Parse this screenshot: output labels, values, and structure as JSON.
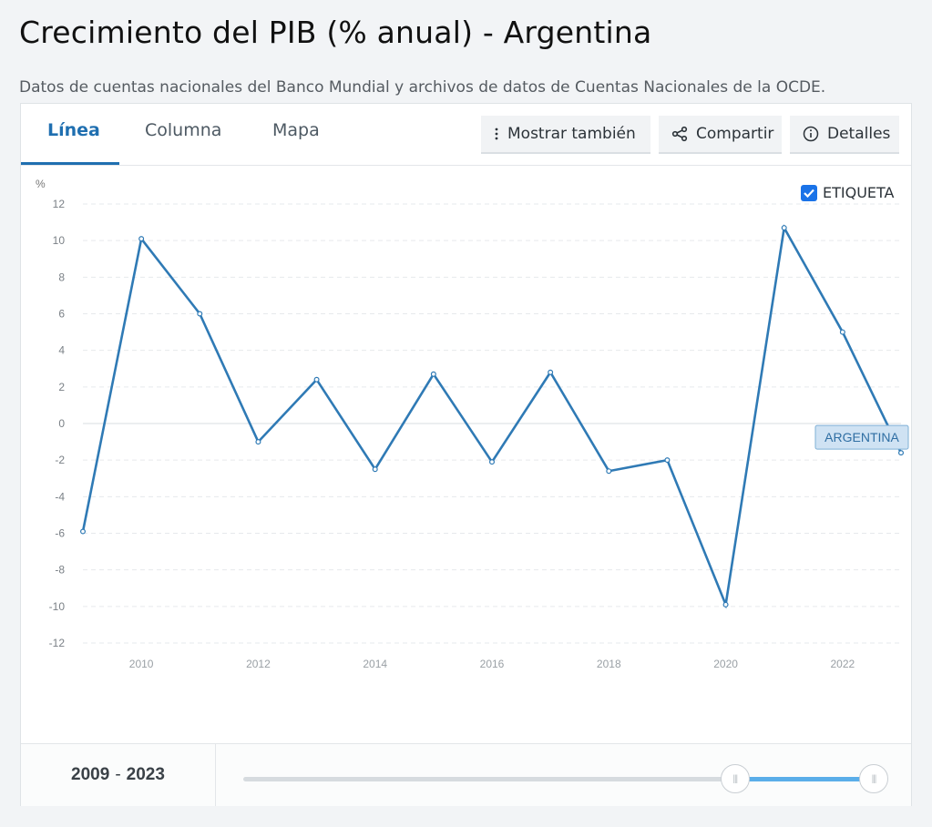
{
  "page": {
    "title": "Crecimiento del PIB (% anual) - Argentina",
    "subtitle": "Datos de cuentas nacionales del Banco Mundial y archivos de datos de Cuentas Nacionales de la OCDE."
  },
  "tabs": [
    {
      "label": "Línea",
      "active": true
    },
    {
      "label": "Columna",
      "active": false
    },
    {
      "label": "Mapa",
      "active": false
    }
  ],
  "toolbar": {
    "more_label": "Mostrar también",
    "share_label": "Compartir",
    "details_label": "Detalles",
    "more_icon": "more-vertical-icon",
    "share_icon": "share-icon",
    "details_icon": "info-icon"
  },
  "legend": {
    "checkbox_label": "ETIQUETA",
    "checked": true
  },
  "range": {
    "start": "2009",
    "separator": "-",
    "end": "2023",
    "slider_start_fraction": 0.78,
    "slider_end_fraction": 1.0
  },
  "colors": {
    "line": "#2f7ab5",
    "accent": "#1f6fb0",
    "checkbox": "#1a73e8",
    "slider_fill": "#5aaee9"
  },
  "chart_data": {
    "type": "line",
    "ylabel": "%",
    "ylim": [
      -12,
      12
    ],
    "yticks": [
      12,
      10,
      8,
      6,
      4,
      2,
      0,
      -2,
      -4,
      -6,
      -8,
      -10,
      -12
    ],
    "xticks": [
      "2010",
      "2012",
      "2014",
      "2016",
      "2018",
      "2020",
      "2022"
    ],
    "xlim": [
      2009,
      2023
    ],
    "grid": true,
    "series": [
      {
        "name": "ARGENTINA",
        "x": [
          2009,
          2010,
          2011,
          2012,
          2013,
          2014,
          2015,
          2016,
          2017,
          2018,
          2019,
          2020,
          2021,
          2022,
          2023
        ],
        "values": [
          -5.9,
          10.1,
          6.0,
          -1.0,
          2.4,
          -2.5,
          2.7,
          -2.1,
          2.8,
          -2.6,
          -2.0,
          -9.9,
          10.7,
          5.0,
          -1.6
        ]
      }
    ]
  }
}
